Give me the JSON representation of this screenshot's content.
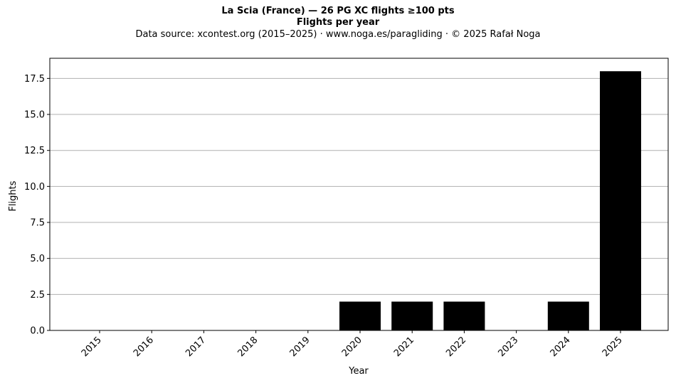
{
  "chart_data": {
    "type": "bar",
    "title": "La Scia (France)  —  26 PG XC flights ≥100 pts",
    "subtitle": "Flights per year",
    "source_note": "Data source: xcontest.org (2015–2025)  ·  www.noga.es/paragliding  ·  © 2025 Rafał Noga",
    "xlabel": "Year",
    "ylabel": "Flights",
    "categories": [
      "2015",
      "2016",
      "2017",
      "2018",
      "2019",
      "2020",
      "2021",
      "2022",
      "2023",
      "2024",
      "2025"
    ],
    "values": [
      0,
      0,
      0,
      0,
      0,
      2,
      2,
      2,
      0,
      2,
      18
    ],
    "ylim": [
      0,
      18.9
    ],
    "yticks": [
      "0.0",
      "2.5",
      "5.0",
      "7.5",
      "10.0",
      "12.5",
      "15.0",
      "17.5"
    ],
    "grid": "horizontal",
    "bar_color": "#000000",
    "grid_color": "#b0b0b0"
  }
}
